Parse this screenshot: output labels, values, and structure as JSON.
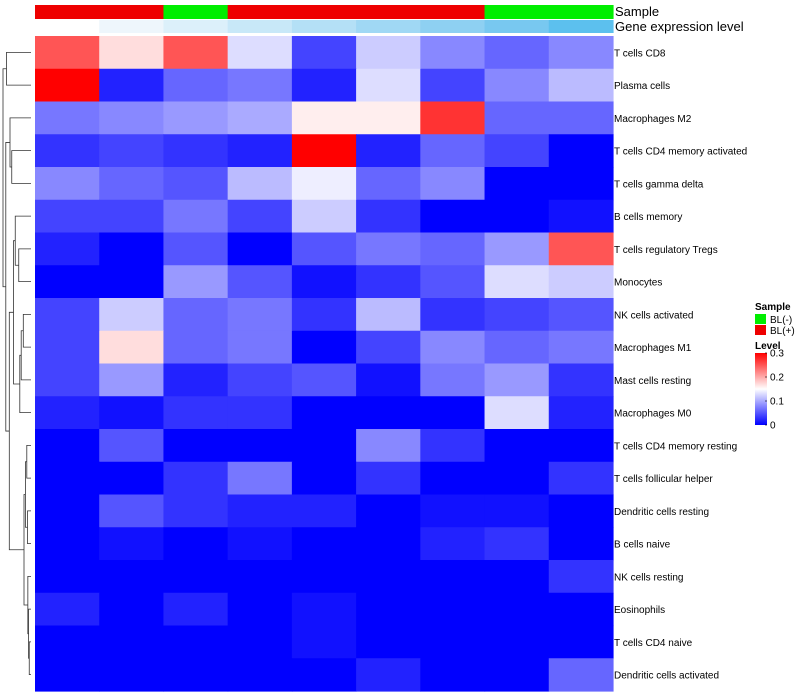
{
  "chart_data": {
    "type": "heatmap",
    "title": "",
    "xlabel": "",
    "ylabel": "",
    "annotations": {
      "sample": {
        "label": "Sample",
        "values": [
          "BL(+)",
          "BL(+)",
          "BL(-)",
          "BL(+)",
          "BL(+)",
          "BL(+)",
          "BL(+)",
          "BL(-)",
          "BL(-)"
        ],
        "legend": [
          {
            "name": "BL(-)",
            "color": "#00ee00"
          },
          {
            "name": "BL(+)",
            "color": "#ee0000"
          }
        ]
      },
      "expression": {
        "label": "Gene expression level",
        "values": [
          0.02,
          0.06,
          0.1,
          0.16,
          0.22,
          0.3,
          0.4,
          0.55,
          0.75
        ],
        "colors": [
          "#ffffff",
          "#eef6fc",
          "#dcf0fa",
          "#c8e8f8",
          "#b4e0f6",
          "#a0d8f4",
          "#8ed0f2",
          "#78c8f0",
          "#5cc0ee"
        ]
      }
    },
    "rows": [
      "T cells CD8",
      "Plasma cells",
      "Macrophages M2",
      "T cells CD4 memory activated",
      "T cells gamma delta",
      "B cells memory",
      "T cells regulatory  Tregs",
      "Monocytes",
      "NK cells activated",
      "Macrophages M1",
      "Mast cells resting",
      "Macrophages M0",
      "T cells CD4 memory resting",
      "T cells follicular helper",
      "Dendritic cells resting",
      "B cells naive",
      "NK cells resting",
      "Eosinophils",
      "T cells CD4 naive",
      "Dendritic cells activated"
    ],
    "values": [
      [
        0.25,
        0.17,
        0.25,
        0.13,
        0.04,
        0.12,
        0.08,
        0.06,
        0.08
      ],
      [
        0.3,
        0.02,
        0.06,
        0.07,
        0.02,
        0.13,
        0.04,
        0.08,
        0.11
      ],
      [
        0.07,
        0.08,
        0.09,
        0.1,
        0.16,
        0.16,
        0.27,
        0.06,
        0.06
      ],
      [
        0.03,
        0.04,
        0.03,
        0.02,
        0.3,
        0.02,
        0.06,
        0.04,
        0.0
      ],
      [
        0.08,
        0.06,
        0.05,
        0.11,
        0.14,
        0.06,
        0.08,
        0.0,
        0.0
      ],
      [
        0.04,
        0.04,
        0.07,
        0.04,
        0.12,
        0.03,
        0.0,
        0.0,
        0.01
      ],
      [
        0.02,
        0.0,
        0.05,
        0.0,
        0.05,
        0.07,
        0.06,
        0.09,
        0.25
      ],
      [
        0.0,
        0.0,
        0.09,
        0.05,
        0.01,
        0.03,
        0.05,
        0.13,
        0.12
      ],
      [
        0.04,
        0.12,
        0.06,
        0.07,
        0.03,
        0.11,
        0.03,
        0.04,
        0.05
      ],
      [
        0.04,
        0.17,
        0.06,
        0.07,
        0.0,
        0.04,
        0.08,
        0.06,
        0.07
      ],
      [
        0.04,
        0.09,
        0.02,
        0.04,
        0.05,
        0.01,
        0.07,
        0.09,
        0.03
      ],
      [
        0.02,
        0.01,
        0.03,
        0.03,
        0.0,
        0.0,
        0.0,
        0.13,
        0.02
      ],
      [
        0.0,
        0.05,
        0.0,
        0.0,
        0.0,
        0.08,
        0.03,
        0.0,
        0.0
      ],
      [
        0.0,
        0.0,
        0.03,
        0.07,
        0.0,
        0.03,
        0.0,
        0.0,
        0.03
      ],
      [
        0.0,
        0.05,
        0.03,
        0.02,
        0.02,
        0.0,
        0.01,
        0.01,
        0.0
      ],
      [
        0.0,
        0.01,
        0.0,
        0.01,
        0.0,
        0.0,
        0.02,
        0.03,
        0.0
      ],
      [
        0.0,
        0.0,
        0.0,
        0.0,
        0.0,
        0.0,
        0.0,
        0.0,
        0.03
      ],
      [
        0.02,
        0.0,
        0.02,
        0.0,
        0.01,
        0.0,
        0.0,
        0.0,
        0.0
      ],
      [
        0.0,
        0.0,
        0.0,
        0.0,
        0.01,
        0.0,
        0.0,
        0.0,
        0.0
      ],
      [
        0.0,
        0.0,
        0.0,
        0.0,
        0.0,
        0.02,
        0.0,
        0.0,
        0.06
      ]
    ],
    "color_scale": {
      "label": "Level",
      "min": 0,
      "mid": 0.15,
      "max": 0.3,
      "low_color": "#0000ff",
      "mid_color": "#ffffff",
      "high_color": "#ff0000",
      "ticks": [
        0,
        0.1,
        0.2,
        0.3
      ],
      "tick_labels": [
        "0",
        "0.1",
        "0.2",
        "0.3"
      ]
    },
    "dendrogram": {
      "side": "left",
      "leaf_order": [
        0,
        1,
        2,
        3,
        4,
        5,
        6,
        7,
        8,
        9,
        10,
        11,
        12,
        13,
        14,
        15,
        16,
        17,
        18,
        19
      ],
      "merges": [
        {
          "left": {
            "leaf": 0
          },
          "right": {
            "leaf": 1
          },
          "height": 0.7
        },
        {
          "left": {
            "leaf": 3
          },
          "right": {
            "leaf": 4
          },
          "height": 0.55
        },
        {
          "left": {
            "leaf": 2
          },
          "right": {
            "node": 1
          },
          "height": 0.6
        },
        {
          "left": {
            "leaf": 6
          },
          "right": {
            "leaf": 7
          },
          "height": 0.35
        },
        {
          "left": {
            "leaf": 5
          },
          "right": {
            "node": 3
          },
          "height": 0.45
        },
        {
          "left": {
            "leaf": 8
          },
          "right": {
            "leaf": 9
          },
          "height": 0.22
        },
        {
          "left": {
            "node": 5
          },
          "right": {
            "leaf": 10
          },
          "height": 0.28
        },
        {
          "left": {
            "node": 6
          },
          "right": {
            "leaf": 11
          },
          "height": 0.32
        },
        {
          "left": {
            "node": 4
          },
          "right": {
            "node": 7
          },
          "height": 0.5
        },
        {
          "left": {
            "leaf": 12
          },
          "right": {
            "leaf": 13
          },
          "height": 0.12
        },
        {
          "left": {
            "leaf": 14
          },
          "right": {
            "leaf": 15
          },
          "height": 0.1
        },
        {
          "left": {
            "node": 9
          },
          "right": {
            "node": 10
          },
          "height": 0.16
        },
        {
          "left": {
            "leaf": 18
          },
          "right": {
            "leaf": 19
          },
          "height": 0.05
        },
        {
          "left": {
            "leaf": 17
          },
          "right": {
            "node": 12
          },
          "height": 0.07
        },
        {
          "left": {
            "leaf": 16
          },
          "right": {
            "node": 13
          },
          "height": 0.09
        },
        {
          "left": {
            "node": 11
          },
          "right": {
            "node": 14
          },
          "height": 0.2
        },
        {
          "left": {
            "node": 8
          },
          "right": {
            "node": 15
          },
          "height": 0.62
        },
        {
          "left": {
            "node": 2
          },
          "right": {
            "node": 16
          },
          "height": 0.72
        },
        {
          "left": {
            "node": 0
          },
          "right": {
            "node": 17
          },
          "height": 0.8
        }
      ]
    }
  },
  "legend": {
    "sample_title": "Sample",
    "level_title": "Level"
  }
}
